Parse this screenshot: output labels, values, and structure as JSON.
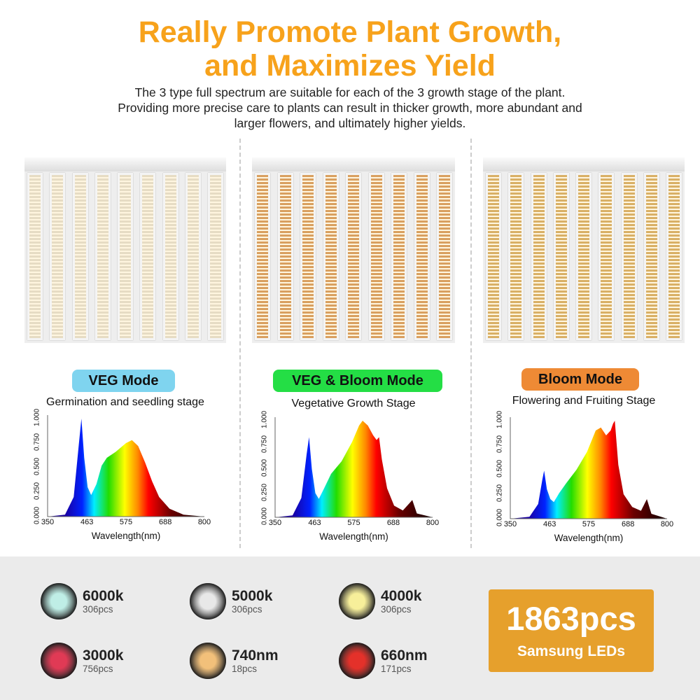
{
  "header": {
    "title_line1": "Really Promote Plant Growth,",
    "title_line2": "and Maximizes Yield",
    "desc_line1": "The 3 type full spectrum are suitable for each of the 3 growth stage of the plant.",
    "desc_line2": "Providing more precise care to plants can result in thicker growth, more abundant and",
    "desc_line3": "larger flowers, and ultimately higher yields."
  },
  "modes": [
    {
      "label": "VEG Mode",
      "stage": "Germination and seedling stage",
      "color": "#7fd4ef",
      "strip": "#e6dcc4"
    },
    {
      "label": "VEG & Bloom Mode",
      "stage": "Vegetative Growth Stage",
      "color": "#24de45",
      "strip": "#d9a060"
    },
    {
      "label": "Bloom Mode",
      "stage": "Flowering and Fruiting Stage",
      "color": "#ee8a35",
      "strip": "#d9b066"
    }
  ],
  "chart_data": [
    {
      "type": "area",
      "xlabel": "Wavelength(nm)",
      "xticks": [
        "350",
        "463",
        "575",
        "688",
        "800"
      ],
      "yticks": [
        "0.000",
        "0.250",
        "0.500",
        "0.750",
        "1.000"
      ],
      "xlim": [
        350,
        800
      ],
      "ylim": [
        0,
        1
      ],
      "x": [
        350,
        400,
        425,
        440,
        447,
        455,
        465,
        475,
        490,
        505,
        520,
        545,
        575,
        592,
        610,
        630,
        650,
        670,
        700,
        740,
        800
      ],
      "y": [
        0,
        0.02,
        0.2,
        0.75,
        1.0,
        0.6,
        0.3,
        0.22,
        0.33,
        0.52,
        0.6,
        0.66,
        0.75,
        0.78,
        0.72,
        0.55,
        0.36,
        0.2,
        0.08,
        0.02,
        0
      ]
    },
    {
      "type": "area",
      "xlabel": "Wavelength(nm)",
      "xticks": [
        "350",
        "463",
        "575",
        "688",
        "800"
      ],
      "yticks": [
        "0.000",
        "0.250",
        "0.500",
        "0.750",
        "1.000"
      ],
      "xlim": [
        350,
        800
      ],
      "ylim": [
        0,
        1
      ],
      "x": [
        350,
        400,
        425,
        440,
        447,
        455,
        465,
        475,
        490,
        510,
        540,
        570,
        590,
        600,
        615,
        630,
        640,
        647,
        655,
        670,
        690,
        715,
        735,
        742,
        755,
        800
      ],
      "y": [
        0,
        0.02,
        0.2,
        0.65,
        0.83,
        0.5,
        0.25,
        0.19,
        0.3,
        0.45,
        0.58,
        0.78,
        0.95,
        1.0,
        0.95,
        0.85,
        0.8,
        0.83,
        0.6,
        0.3,
        0.12,
        0.07,
        0.15,
        0.18,
        0.04,
        0
      ]
    },
    {
      "type": "area",
      "xlabel": "Wavelength(nm)",
      "xticks": [
        "350",
        "463",
        "575",
        "688",
        "800"
      ],
      "yticks": [
        "0.000",
        "0.250",
        "0.500",
        "0.750",
        "1.000"
      ],
      "xlim": [
        350,
        800
      ],
      "ylim": [
        0,
        1
      ],
      "x": [
        350,
        405,
        430,
        442,
        447,
        455,
        465,
        475,
        490,
        510,
        540,
        570,
        595,
        610,
        625,
        638,
        645,
        650,
        660,
        675,
        700,
        725,
        742,
        755,
        800
      ],
      "y": [
        0,
        0.02,
        0.15,
        0.4,
        0.49,
        0.3,
        0.2,
        0.17,
        0.26,
        0.36,
        0.5,
        0.68,
        0.9,
        0.93,
        0.85,
        0.9,
        0.97,
        1.0,
        0.55,
        0.25,
        0.12,
        0.08,
        0.2,
        0.05,
        0
      ]
    }
  ],
  "leds": [
    {
      "name": "6000k",
      "count": "306pcs",
      "color": "#bfeee6"
    },
    {
      "name": "5000k",
      "count": "306pcs",
      "color": "#e8e8e8"
    },
    {
      "name": "4000k",
      "count": "306pcs",
      "color": "#f7ef9a"
    },
    {
      "name": "3000k",
      "count": "756pcs",
      "color": "#e03a55"
    },
    {
      "name": "740nm",
      "count": "18pcs",
      "color": "#f2c07a"
    },
    {
      "name": "660nm",
      "count": "171pcs",
      "color": "#e4312a"
    }
  ],
  "total": {
    "count": "1863pcs",
    "label": "Samsung LEDs"
  }
}
